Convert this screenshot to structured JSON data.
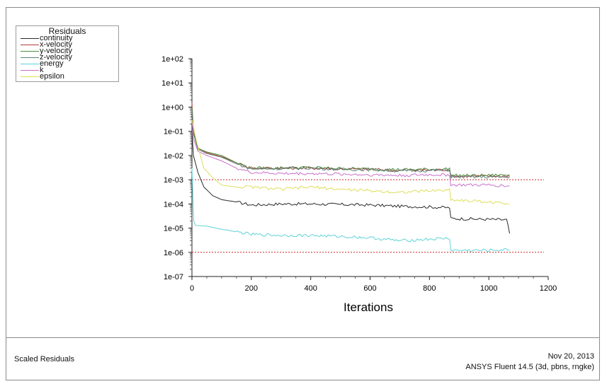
{
  "chart_data": {
    "type": "line",
    "title": "",
    "xlabel": "Iterations",
    "ylabel": "",
    "yscale": "log",
    "xlim": [
      0,
      1200
    ],
    "ylim": [
      1e-07,
      100
    ],
    "xticks": [
      0,
      200,
      400,
      600,
      800,
      1000,
      1200
    ],
    "xtick_labels": [
      "0",
      "200",
      "400",
      "600",
      "800",
      "1000",
      "1200"
    ],
    "yticks": [
      1e-07,
      1e-06,
      1e-05,
      0.0001,
      0.001,
      0.01,
      0.1,
      1,
      10,
      100
    ],
    "ytick_labels": [
      "1e-07",
      "1e-06",
      "1e-05",
      "1e-04",
      "1e-03",
      "1e-02",
      "1e-01",
      "1e+00",
      "1e+01",
      "1e+02"
    ],
    "grid": false,
    "legend": {
      "title": "Residuals",
      "placement": "top-left",
      "entries": [
        "continuity",
        "x-velocity",
        "y-velocity",
        "z-velocity",
        "energy",
        "k",
        "epsilon"
      ]
    },
    "reference_lines": [
      {
        "y": 0.001,
        "color": "#cc2222"
      },
      {
        "y": 1e-06,
        "color": "#cc2222"
      }
    ],
    "series": [
      {
        "name": "continuity",
        "color": "#2a2a2a",
        "x": [
          0,
          5,
          20,
          40,
          70,
          100,
          150,
          200,
          300,
          400,
          500,
          600,
          700,
          800,
          868,
          872,
          1000,
          1060,
          1070
        ],
        "y": [
          0.1,
          0.01,
          0.002,
          0.0005,
          0.00022,
          0.00015,
          0.00012,
          9e-05,
          0.0001,
          0.0001,
          9.5e-05,
          9e-05,
          8e-05,
          7.5e-05,
          7e-05,
          2.5e-05,
          2.3e-05,
          2.2e-05,
          6e-06
        ]
      },
      {
        "name": "x-velocity",
        "color": "#b03a3a",
        "x": [
          0,
          5,
          20,
          50,
          100,
          150,
          200,
          300,
          400,
          500,
          600,
          700,
          800,
          868,
          872,
          1000,
          1070
        ],
        "y": [
          1.5,
          0.1,
          0.02,
          0.013,
          0.009,
          0.005,
          0.003,
          0.003,
          0.003,
          0.0028,
          0.0027,
          0.0024,
          0.0025,
          0.0026,
          0.0014,
          0.0014,
          0.0014
        ]
      },
      {
        "name": "y-velocity",
        "color": "#4a8c3a",
        "x": [
          0,
          5,
          20,
          50,
          100,
          150,
          200,
          300,
          400,
          500,
          600,
          700,
          800,
          868,
          872,
          1000,
          1070
        ],
        "y": [
          1,
          0.09,
          0.02,
          0.014,
          0.01,
          0.005,
          0.003,
          0.0031,
          0.0032,
          0.0029,
          0.0028,
          0.0026,
          0.0027,
          0.0028,
          0.0015,
          0.0015,
          0.0016
        ]
      },
      {
        "name": "z-velocity",
        "color": "#5f7f7a",
        "x": [
          0,
          5,
          20,
          50,
          100,
          150,
          200,
          300,
          400,
          500,
          600,
          700,
          800,
          868,
          872,
          1000,
          1070
        ],
        "y": [
          0.8,
          0.08,
          0.018,
          0.012,
          0.0085,
          0.0045,
          0.0028,
          0.0029,
          0.003,
          0.0027,
          0.0026,
          0.0023,
          0.0024,
          0.0025,
          0.0013,
          0.0013,
          0.0013
        ]
      },
      {
        "name": "energy",
        "color": "#5fd3d8",
        "x": [
          0,
          3,
          6,
          12,
          50,
          100,
          200,
          300,
          400,
          500,
          600,
          700,
          800,
          868,
          872,
          1000,
          1070
        ],
        "y": [
          0.003,
          0.0002,
          2e-05,
          1.3e-05,
          1.2e-05,
          9e-06,
          5.5e-06,
          5e-06,
          5e-06,
          4.5e-06,
          4e-06,
          3e-06,
          3.5e-06,
          3.8e-06,
          1.2e-06,
          1.2e-06,
          1.3e-06
        ]
      },
      {
        "name": "k",
        "color": "#c870c8",
        "x": [
          0,
          5,
          20,
          50,
          100,
          150,
          200,
          300,
          400,
          500,
          600,
          700,
          800,
          868,
          872,
          1000,
          1070
        ],
        "y": [
          0.3,
          0.05,
          0.015,
          0.01,
          0.006,
          0.003,
          0.002,
          0.0018,
          0.0018,
          0.0017,
          0.0016,
          0.0015,
          0.0016,
          0.0016,
          0.0006,
          0.0006,
          0.00055
        ]
      },
      {
        "name": "epsilon",
        "color": "#dede5a",
        "x": [
          0,
          5,
          15,
          40,
          70,
          100,
          150,
          200,
          300,
          400,
          500,
          600,
          700,
          800,
          868,
          872,
          1000,
          1070
        ],
        "y": [
          0.3,
          0.15,
          0.04,
          0.003,
          0.0012,
          0.0006,
          0.0005,
          0.0005,
          0.0004,
          0.0005,
          0.0004,
          0.00035,
          0.0003,
          0.00035,
          0.00038,
          0.00015,
          0.00012,
          0.0001
        ]
      }
    ]
  },
  "footer": {
    "left_label": "Scaled Residuals",
    "date": "Nov 20, 2013",
    "product": "ANSYS Fluent 14.5 (3d, pbns, rngke)"
  }
}
